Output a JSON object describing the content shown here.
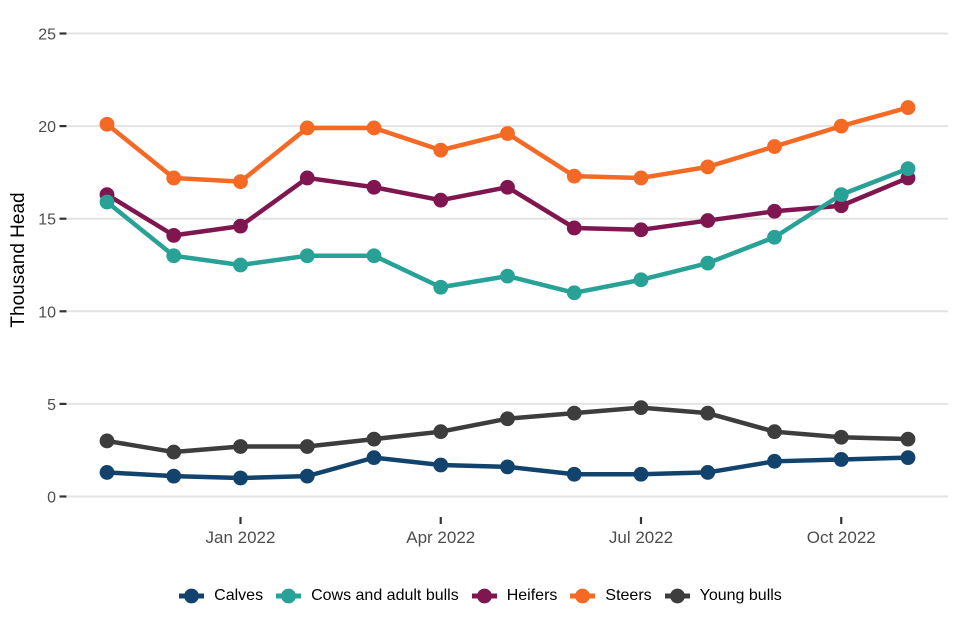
{
  "chart_data": {
    "type": "line",
    "title": "",
    "ylabel": "Thousand Head",
    "ylim": [
      0,
      25
    ],
    "yticks": [
      0,
      5,
      10,
      15,
      20,
      25
    ],
    "grid": "horizontal-only",
    "legend_position": "bottom",
    "x": [
      "Nov 2021",
      "Dec 2021",
      "Jan 2022",
      "Feb 2022",
      "Mar 2022",
      "Apr 2022",
      "May 2022",
      "Jun 2022",
      "Jul 2022",
      "Aug 2022",
      "Sep 2022",
      "Oct 2022",
      "Nov 2022"
    ],
    "xticks": [
      {
        "index": 2,
        "label": "Jan 2022"
      },
      {
        "index": 5,
        "label": "Apr 2022"
      },
      {
        "index": 8,
        "label": "Jul 2022"
      },
      {
        "index": 11,
        "label": "Oct 2022"
      }
    ],
    "series": [
      {
        "name": "Calves",
        "color": "#12436D",
        "values": [
          1.3,
          1.1,
          1.0,
          1.1,
          2.1,
          1.7,
          1.6,
          1.2,
          1.2,
          1.3,
          1.9,
          2.0,
          2.1
        ]
      },
      {
        "name": "Cows and adult bulls",
        "color": "#28A197",
        "values": [
          15.9,
          13.0,
          12.5,
          13.0,
          13.0,
          11.3,
          11.9,
          11.0,
          11.7,
          12.6,
          14.0,
          16.3,
          17.7
        ]
      },
      {
        "name": "Heifers",
        "color": "#801650",
        "values": [
          16.3,
          14.1,
          14.6,
          17.2,
          16.7,
          16.0,
          16.7,
          14.5,
          14.4,
          14.9,
          15.4,
          15.7,
          17.2
        ]
      },
      {
        "name": "Steers",
        "color": "#F46A25",
        "values": [
          20.1,
          17.2,
          17.0,
          19.9,
          19.9,
          18.7,
          19.6,
          17.3,
          17.2,
          17.8,
          18.9,
          20.0,
          21.0
        ]
      },
      {
        "name": "Young bulls",
        "color": "#3D3D3D",
        "values": [
          3.0,
          2.4,
          2.7,
          2.7,
          3.1,
          3.5,
          4.2,
          4.5,
          4.8,
          4.5,
          3.5,
          3.2,
          3.1
        ]
      }
    ],
    "style_colors": {
      "gridline": "#e3e3e3",
      "tick_mark": "#333333",
      "tick_label": "#4d4d4d",
      "axis_title": "#000000",
      "background": "#ffffff"
    }
  }
}
